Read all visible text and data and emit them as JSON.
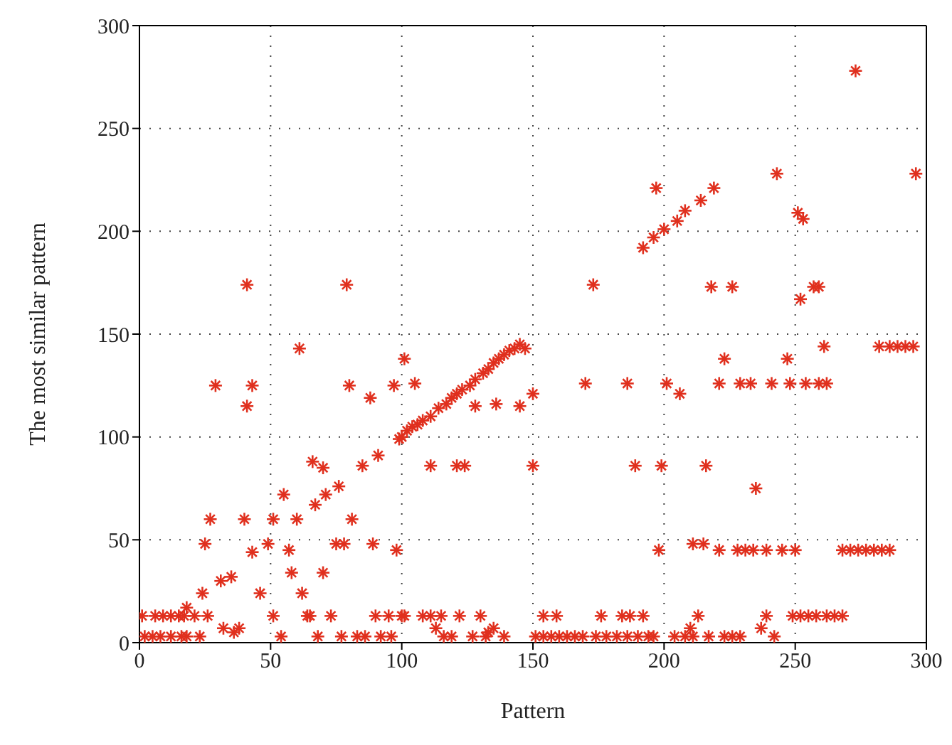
{
  "chart_data": {
    "type": "scatter",
    "xlabel": "Pattern",
    "ylabel": "The most similar pattern",
    "xlim": [
      0,
      300
    ],
    "ylim": [
      0,
      300
    ],
    "xticks": [
      0,
      50,
      100,
      150,
      200,
      250,
      300
    ],
    "yticks": [
      0,
      50,
      100,
      150,
      200,
      250,
      300
    ],
    "grid": true,
    "marker": "cross",
    "series": [
      {
        "color": "#e0301e",
        "x": [
          1,
          6,
          9,
          12,
          15,
          17,
          21,
          26,
          51,
          64,
          65,
          73,
          90,
          95,
          100,
          2,
          5,
          8,
          12,
          16,
          18,
          23,
          54,
          68,
          77,
          83,
          86,
          92,
          96,
          32,
          36,
          38,
          18,
          24,
          31,
          35,
          43,
          49,
          27,
          40,
          51,
          60,
          81,
          25,
          75,
          78,
          89,
          57,
          58,
          70,
          46,
          62,
          55,
          67,
          71,
          76,
          66,
          70,
          85,
          91,
          99,
          29,
          43,
          41,
          88,
          80,
          41,
          79,
          61,
          101,
          97,
          105,
          100,
          102,
          104,
          106,
          108,
          111,
          114,
          117,
          119,
          121,
          123,
          126,
          128,
          131,
          133,
          135,
          137,
          139,
          141,
          143,
          145,
          147,
          128,
          136,
          145,
          150,
          173,
          170,
          186,
          201,
          206,
          197,
          192,
          196,
          200,
          205,
          111,
          121,
          124,
          150,
          189,
          199,
          98,
          198,
          101,
          108,
          111,
          115,
          122,
          130,
          154,
          159,
          176,
          184,
          187,
          192,
          116,
          119,
          127,
          132,
          139,
          151,
          154,
          157,
          160,
          163,
          166,
          169,
          174,
          178,
          182,
          186,
          190,
          194,
          113,
          135,
          133,
          235,
          216,
          221,
          228,
          231,
          234,
          239,
          245,
          250,
          268,
          271,
          274,
          277,
          280,
          283,
          286,
          211,
          215,
          213,
          239,
          249,
          252,
          255,
          258,
          262,
          265,
          268,
          210,
          237,
          196,
          204,
          208,
          211,
          217,
          223,
          226,
          229,
          242,
          273,
          243,
          296,
          219,
          214,
          208,
          251,
          253,
          218,
          226,
          257,
          259,
          252,
          261,
          282,
          286,
          289,
          292,
          295,
          223,
          247,
          221,
          229,
          233,
          241,
          248,
          254,
          259,
          262
        ],
        "values": [
          13,
          13,
          13,
          13,
          13,
          13,
          13,
          13,
          13,
          13,
          13,
          13,
          13,
          13,
          13,
          3,
          3,
          3,
          3,
          3,
          3,
          3,
          3,
          3,
          3,
          3,
          3,
          3,
          3,
          7,
          5,
          7,
          17,
          24,
          30,
          32,
          44,
          48,
          60,
          60,
          60,
          60,
          60,
          48,
          48,
          48,
          48,
          45,
          34,
          34,
          24,
          24,
          72,
          67,
          72,
          76,
          88,
          85,
          86,
          91,
          99,
          125,
          125,
          115,
          119,
          125,
          174,
          174,
          143,
          138,
          125,
          126,
          100,
          103,
          105,
          106,
          108,
          110,
          114,
          116,
          119,
          121,
          123,
          125,
          128,
          131,
          133,
          136,
          138,
          140,
          142,
          143,
          145,
          143,
          115,
          116,
          115,
          121,
          174,
          126,
          126,
          126,
          121,
          221,
          192,
          197,
          201,
          205,
          86,
          86,
          86,
          86,
          86,
          86,
          45,
          45,
          13,
          13,
          13,
          13,
          13,
          13,
          13,
          13,
          13,
          13,
          13,
          13,
          3,
          3,
          3,
          3,
          3,
          3,
          3,
          3,
          3,
          3,
          3,
          3,
          3,
          3,
          3,
          3,
          3,
          3,
          7,
          7,
          5,
          75,
          86,
          45,
          45,
          45,
          45,
          45,
          45,
          45,
          45,
          45,
          45,
          45,
          45,
          45,
          45,
          48,
          48,
          13,
          13,
          13,
          13,
          13,
          13,
          13,
          13,
          13,
          7,
          7,
          3,
          3,
          3,
          3,
          3,
          3,
          3,
          3,
          3,
          278,
          228,
          228,
          221,
          215,
          210,
          209,
          206,
          173,
          173,
          173,
          173,
          167,
          144,
          144,
          144,
          144,
          144,
          144,
          138,
          138,
          126,
          126,
          126,
          126,
          126,
          126,
          126,
          126
        ]
      }
    ]
  }
}
